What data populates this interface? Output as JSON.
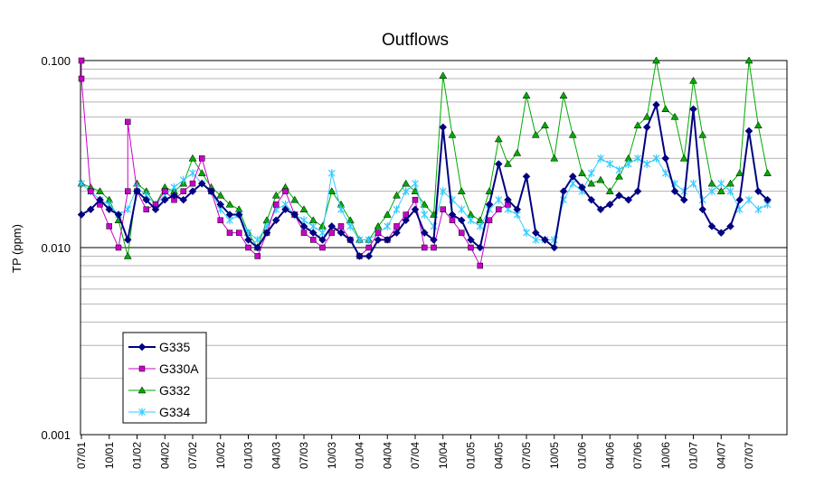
{
  "chart_data": {
    "type": "line",
    "title": "Outflows",
    "xlabel": "",
    "ylabel": "TP (ppm)",
    "yscale": "log",
    "ylim": [
      0.001,
      0.1
    ],
    "y_ticks": [
      "0.001",
      "0.010",
      "0.100"
    ],
    "x_ticks": [
      "07/01",
      "10/01",
      "01/02",
      "04/02",
      "07/02",
      "10/02",
      "01/03",
      "04/03",
      "07/03",
      "10/03",
      "01/04",
      "04/04",
      "07/04",
      "10/04",
      "01/05",
      "04/05",
      "07/05",
      "10/05",
      "01/06",
      "04/06",
      "07/06",
      "10/06",
      "01/07",
      "04/07",
      "07/07"
    ],
    "grid": true,
    "legend_position": "bottom-left",
    "series": [
      {
        "name": "G335",
        "color": "#000080",
        "marker": "diamond",
        "values": [
          [
            "07/01",
            0.015
          ],
          [
            "08/01",
            0.016
          ],
          [
            "09/01",
            0.018
          ],
          [
            "10/01",
            0.016
          ],
          [
            "11/01",
            0.015
          ],
          [
            "12/01",
            0.011
          ],
          [
            "01/02",
            0.02
          ],
          [
            "02/02",
            0.018
          ],
          [
            "03/02",
            0.016
          ],
          [
            "04/02",
            0.018
          ],
          [
            "05/02",
            0.019
          ],
          [
            "06/02",
            0.018
          ],
          [
            "07/02",
            0.02
          ],
          [
            "08/02",
            0.022
          ],
          [
            "09/02",
            0.02
          ],
          [
            "10/02",
            0.017
          ],
          [
            "11/02",
            0.015
          ],
          [
            "12/02",
            0.015
          ],
          [
            "01/03",
            0.011
          ],
          [
            "02/03",
            0.01
          ],
          [
            "03/03",
            0.012
          ],
          [
            "04/03",
            0.014
          ],
          [
            "05/03",
            0.016
          ],
          [
            "06/03",
            0.015
          ],
          [
            "07/03",
            0.013
          ],
          [
            "08/03",
            0.012
          ],
          [
            "09/03",
            0.011
          ],
          [
            "10/03",
            0.013
          ],
          [
            "11/03",
            0.012
          ],
          [
            "12/03",
            0.011
          ],
          [
            "01/04",
            0.009
          ],
          [
            "02/04",
            0.009
          ],
          [
            "03/04",
            0.011
          ],
          [
            "04/04",
            0.011
          ],
          [
            "05/04",
            0.012
          ],
          [
            "06/04",
            0.014
          ],
          [
            "07/04",
            0.016
          ],
          [
            "08/04",
            0.012
          ],
          [
            "09/04",
            0.011
          ],
          [
            "10/04",
            0.044
          ],
          [
            "11/04",
            0.015
          ],
          [
            "12/04",
            0.014
          ],
          [
            "01/05",
            0.011
          ],
          [
            "02/05",
            0.01
          ],
          [
            "03/05",
            0.017
          ],
          [
            "04/05",
            0.028
          ],
          [
            "05/05",
            0.018
          ],
          [
            "06/05",
            0.016
          ],
          [
            "07/05",
            0.024
          ],
          [
            "08/05",
            0.012
          ],
          [
            "09/05",
            0.011
          ],
          [
            "10/05",
            0.01
          ],
          [
            "11/05",
            0.02
          ],
          [
            "12/05",
            0.024
          ],
          [
            "01/06",
            0.021
          ],
          [
            "02/06",
            0.018
          ],
          [
            "03/06",
            0.016
          ],
          [
            "04/06",
            0.017
          ],
          [
            "05/06",
            0.019
          ],
          [
            "06/06",
            0.018
          ],
          [
            "07/06",
            0.02
          ],
          [
            "08/06",
            0.044
          ],
          [
            "09/06",
            0.058
          ],
          [
            "10/06",
            0.03
          ],
          [
            "11/06",
            0.02
          ],
          [
            "12/06",
            0.018
          ],
          [
            "01/07",
            0.055
          ],
          [
            "02/07",
            0.016
          ],
          [
            "03/07",
            0.013
          ],
          [
            "04/07",
            0.012
          ],
          [
            "05/07",
            0.013
          ],
          [
            "06/07",
            0.018
          ],
          [
            "07/07",
            0.042
          ],
          [
            "08/07",
            0.02
          ],
          [
            "09/07",
            0.018
          ]
        ]
      },
      {
        "name": "G330A",
        "color": "#CC00CC",
        "marker": "square",
        "values": [
          [
            "07/01",
            0.1
          ],
          [
            "07/01",
            0.08
          ],
          [
            "08/01",
            0.02
          ],
          [
            "09/01",
            0.017
          ],
          [
            "10/01",
            0.013
          ],
          [
            "11/01",
            0.01
          ],
          [
            "12/01",
            0.02
          ],
          [
            "12/01",
            0.047
          ],
          [
            "01/02",
            0.02
          ],
          [
            "02/02",
            0.016
          ],
          [
            "03/02",
            0.017
          ],
          [
            "04/02",
            0.02
          ],
          [
            "05/02",
            0.018
          ],
          [
            "06/02",
            0.02
          ],
          [
            "07/02",
            0.022
          ],
          [
            "08/02",
            0.03
          ],
          [
            "09/02",
            0.02
          ],
          [
            "10/02",
            0.014
          ],
          [
            "11/02",
            0.012
          ],
          [
            "12/02",
            0.012
          ],
          [
            "01/03",
            0.01
          ],
          [
            "02/03",
            0.009
          ],
          [
            "03/03",
            0.012
          ],
          [
            "04/03",
            0.017
          ],
          [
            "05/03",
            0.02
          ],
          [
            "06/03",
            0.015
          ],
          [
            "07/03",
            0.012
          ],
          [
            "08/03",
            0.011
          ],
          [
            "09/03",
            0.01
          ],
          [
            "10/03",
            0.012
          ],
          [
            "11/03",
            0.013
          ],
          [
            "12/03",
            0.011
          ],
          [
            "01/04",
            0.009
          ],
          [
            "02/04",
            0.01
          ],
          [
            "03/04",
            0.012
          ],
          [
            "04/04",
            0.011
          ],
          [
            "05/04",
            0.013
          ],
          [
            "06/04",
            0.015
          ],
          [
            "07/04",
            0.018
          ],
          [
            "08/04",
            0.01
          ],
          [
            "09/04",
            0.01
          ],
          [
            "10/04",
            0.016
          ],
          [
            "11/04",
            0.014
          ],
          [
            "12/04",
            0.012
          ],
          [
            "01/05",
            0.01
          ],
          [
            "02/05",
            0.008
          ],
          [
            "03/05",
            0.014
          ],
          [
            "04/05",
            0.016
          ],
          [
            "05/05",
            0.017
          ]
        ]
      },
      {
        "name": "G332",
        "color": "#00AA00",
        "marker": "triangle",
        "values": [
          [
            "07/01",
            0.022
          ],
          [
            "08/01",
            0.021
          ],
          [
            "09/01",
            0.02
          ],
          [
            "10/01",
            0.018
          ],
          [
            "11/01",
            0.014
          ],
          [
            "12/01",
            0.009
          ],
          [
            "01/02",
            0.022
          ],
          [
            "02/02",
            0.02
          ],
          [
            "03/02",
            0.017
          ],
          [
            "04/02",
            0.021
          ],
          [
            "05/02",
            0.02
          ],
          [
            "06/02",
            0.022
          ],
          [
            "07/02",
            0.03
          ],
          [
            "08/02",
            0.025
          ],
          [
            "09/02",
            0.021
          ],
          [
            "10/02",
            0.019
          ],
          [
            "11/02",
            0.017
          ],
          [
            "12/02",
            0.016
          ],
          [
            "01/03",
            0.012
          ],
          [
            "02/03",
            0.01
          ],
          [
            "03/03",
            0.014
          ],
          [
            "04/03",
            0.019
          ],
          [
            "05/03",
            0.021
          ],
          [
            "06/03",
            0.018
          ],
          [
            "07/03",
            0.016
          ],
          [
            "08/03",
            0.014
          ],
          [
            "09/03",
            0.013
          ],
          [
            "10/03",
            0.02
          ],
          [
            "11/03",
            0.017
          ],
          [
            "12/03",
            0.014
          ],
          [
            "01/04",
            0.011
          ],
          [
            "02/04",
            0.011
          ],
          [
            "03/04",
            0.013
          ],
          [
            "04/04",
            0.015
          ],
          [
            "05/04",
            0.019
          ],
          [
            "06/04",
            0.022
          ],
          [
            "07/04",
            0.02
          ],
          [
            "08/04",
            0.017
          ],
          [
            "09/04",
            0.015
          ],
          [
            "10/04",
            0.083
          ],
          [
            "11/04",
            0.04
          ],
          [
            "12/04",
            0.02
          ],
          [
            "01/05",
            0.015
          ],
          [
            "02/05",
            0.014
          ],
          [
            "03/05",
            0.02
          ],
          [
            "04/05",
            0.038
          ],
          [
            "05/05",
            0.028
          ],
          [
            "06/05",
            0.032
          ],
          [
            "07/05",
            0.065
          ],
          [
            "08/05",
            0.04
          ],
          [
            "09/05",
            0.045
          ],
          [
            "10/05",
            0.03
          ],
          [
            "11/05",
            0.065
          ],
          [
            "12/05",
            0.04
          ],
          [
            "01/06",
            0.025
          ],
          [
            "02/06",
            0.022
          ],
          [
            "03/06",
            0.023
          ],
          [
            "04/06",
            0.02
          ],
          [
            "05/06",
            0.024
          ],
          [
            "06/06",
            0.03
          ],
          [
            "07/06",
            0.045
          ],
          [
            "08/06",
            0.05
          ],
          [
            "09/06",
            0.1
          ],
          [
            "10/06",
            0.055
          ],
          [
            "11/06",
            0.05
          ],
          [
            "12/06",
            0.03
          ],
          [
            "01/07",
            0.078
          ],
          [
            "02/07",
            0.04
          ],
          [
            "03/07",
            0.022
          ],
          [
            "04/07",
            0.02
          ],
          [
            "05/07",
            0.022
          ],
          [
            "06/07",
            0.025
          ],
          [
            "07/07",
            0.1
          ],
          [
            "08/07",
            0.045
          ],
          [
            "09/07",
            0.025
          ]
        ]
      },
      {
        "name": "G334",
        "color": "#33CCFF",
        "marker": "star",
        "values": [
          [
            "07/01",
            0.022
          ],
          [
            "08/01",
            0.02
          ],
          [
            "09/01",
            0.018
          ],
          [
            "10/01",
            0.017
          ],
          [
            "11/01",
            0.015
          ],
          [
            "12/01",
            0.016
          ],
          [
            "01/02",
            0.021
          ],
          [
            "02/02",
            0.019
          ],
          [
            "03/02",
            0.017
          ],
          [
            "04/02",
            0.019
          ],
          [
            "05/02",
            0.021
          ],
          [
            "06/02",
            0.023
          ],
          [
            "07/02",
            0.025
          ],
          [
            "08/02",
            0.022
          ],
          [
            "09/02",
            0.02
          ],
          [
            "10/02",
            0.016
          ],
          [
            "11/02",
            0.014
          ],
          [
            "12/02",
            0.015
          ],
          [
            "01/03",
            0.012
          ],
          [
            "02/03",
            0.011
          ],
          [
            "03/03",
            0.013
          ],
          [
            "04/03",
            0.016
          ],
          [
            "05/03",
            0.017
          ],
          [
            "06/03",
            0.015
          ],
          [
            "07/03",
            0.014
          ],
          [
            "08/03",
            0.013
          ],
          [
            "09/03",
            0.012
          ],
          [
            "10/03",
            0.025
          ],
          [
            "11/03",
            0.016
          ],
          [
            "12/03",
            0.013
          ],
          [
            "01/04",
            0.011
          ],
          [
            "02/04",
            0.011
          ],
          [
            "03/04",
            0.012
          ],
          [
            "04/04",
            0.013
          ],
          [
            "05/04",
            0.016
          ],
          [
            "06/04",
            0.02
          ],
          [
            "07/04",
            0.022
          ],
          [
            "08/04",
            0.015
          ],
          [
            "09/04",
            0.013
          ],
          [
            "10/04",
            0.02
          ],
          [
            "11/04",
            0.018
          ],
          [
            "12/04",
            0.016
          ],
          [
            "01/05",
            0.014
          ],
          [
            "02/05",
            0.013
          ],
          [
            "03/05",
            0.016
          ],
          [
            "04/05",
            0.018
          ],
          [
            "05/05",
            0.016
          ],
          [
            "06/05",
            0.015
          ],
          [
            "07/05",
            0.012
          ],
          [
            "08/05",
            0.011
          ],
          [
            "09/05",
            0.011
          ],
          [
            "10/05",
            0.011
          ],
          [
            "11/05",
            0.018
          ],
          [
            "12/05",
            0.022
          ],
          [
            "01/06",
            0.02
          ],
          [
            "02/06",
            0.025
          ],
          [
            "03/06",
            0.03
          ],
          [
            "04/06",
            0.028
          ],
          [
            "05/06",
            0.026
          ],
          [
            "06/06",
            0.028
          ],
          [
            "07/06",
            0.03
          ],
          [
            "08/06",
            0.028
          ],
          [
            "09/06",
            0.03
          ],
          [
            "10/06",
            0.025
          ],
          [
            "11/06",
            0.022
          ],
          [
            "12/06",
            0.02
          ],
          [
            "01/07",
            0.022
          ],
          [
            "02/07",
            0.018
          ],
          [
            "03/07",
            0.02
          ],
          [
            "04/07",
            0.022
          ],
          [
            "05/07",
            0.02
          ],
          [
            "06/07",
            0.016
          ],
          [
            "07/07",
            0.018
          ],
          [
            "08/07",
            0.016
          ],
          [
            "09/07",
            0.017
          ]
        ]
      }
    ]
  }
}
